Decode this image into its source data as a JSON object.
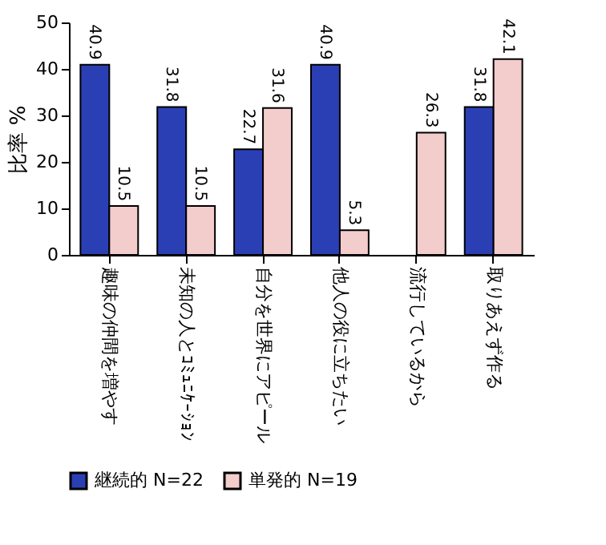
{
  "chart_data": {
    "type": "bar",
    "ylabel": "比率 %",
    "categories": [
      "趣味の仲間を増やす",
      "未知の人とｺﾐｭﾆｹｰｼｮﾝ",
      "自分を世界にアピール",
      "他人の役に立ちたい",
      "流行しているから",
      "取りあえず作る"
    ],
    "series": [
      {
        "name": "継続的 N=22",
        "color": "#2b3fb5",
        "values": [
          40.9,
          31.8,
          22.7,
          40.9,
          null,
          31.8
        ]
      },
      {
        "name": "単発的 N=19",
        "color": "#f3cccc",
        "values": [
          10.5,
          10.5,
          31.6,
          5.3,
          26.3,
          42.1
        ]
      }
    ],
    "ylim": [
      0,
      50
    ],
    "yticks": [
      0,
      10,
      20,
      30,
      40,
      50
    ],
    "grid": false,
    "legend": "bottom",
    "data_labels": true
  }
}
